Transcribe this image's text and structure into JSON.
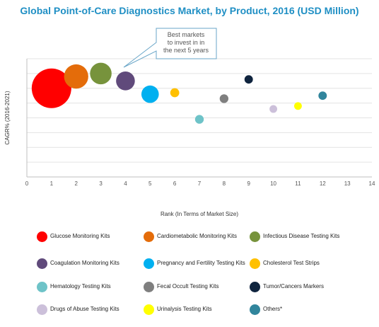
{
  "title": "Global Point-of-Care Diagnostics Market, by Product, 2016 (USD Million)",
  "chart_data": {
    "type": "bubble",
    "title": "Global Point-of-Care Diagnostics Market, by Product, 2016 (USD Million)",
    "xlabel": "Rank (In Terms of Market Size)",
    "ylabel": "CAGR% (2016-2021)",
    "xlim": [
      0,
      14
    ],
    "x_ticks": [
      "0",
      "1",
      "2",
      "3",
      "4",
      "5",
      "6",
      "7",
      "8",
      "9",
      "10",
      "11",
      "12",
      "13",
      "14"
    ],
    "grid": "horizontal",
    "annotation": "Best markets to invest in in the next 5 years",
    "series": [
      {
        "name": "Glucose Monitoring Kits",
        "x": 1,
        "y": 6.0,
        "size": 100,
        "color": "#ff0000"
      },
      {
        "name": "Cardiometabolic Monitoring Kits",
        "x": 2,
        "y": 6.8,
        "size": 30,
        "color": "#e46c0a"
      },
      {
        "name": "Infectious Disease Testing Kits",
        "x": 3,
        "y": 7.0,
        "size": 22,
        "color": "#77933c"
      },
      {
        "name": "Coagulation Monitoring Kits",
        "x": 4,
        "y": 6.5,
        "size": 15,
        "color": "#604a7b"
      },
      {
        "name": "Pregnancy and Fertility Testing Kits",
        "x": 5,
        "y": 5.6,
        "size": 12,
        "color": "#00b0f0"
      },
      {
        "name": "Cholesterol Test Strips",
        "x": 6,
        "y": 5.7,
        "size": 10,
        "color": "#ffc000"
      },
      {
        "name": "Hematology Testing Kits",
        "x": 7,
        "y": 3.9,
        "size": 9,
        "color": "#6ec3c8"
      },
      {
        "name": "Fecal Occult Testing Kits",
        "x": 8,
        "y": 5.3,
        "size": 9,
        "color": "#7f7f7f"
      },
      {
        "name": "Tumor/Cancers Markers",
        "x": 9,
        "y": 6.6,
        "size": 8,
        "color": "#0f243e"
      },
      {
        "name": "Drugs of Abuse Testing Kits",
        "x": 10,
        "y": 4.6,
        "size": 6,
        "color": "#ccc0da"
      },
      {
        "name": "Urinalysis Testing Kits",
        "x": 11,
        "y": 4.8,
        "size": 6,
        "color": "#ffff00"
      },
      {
        "name": "Others*",
        "x": 12,
        "y": 5.5,
        "size": 8,
        "color": "#31859c"
      }
    ]
  }
}
